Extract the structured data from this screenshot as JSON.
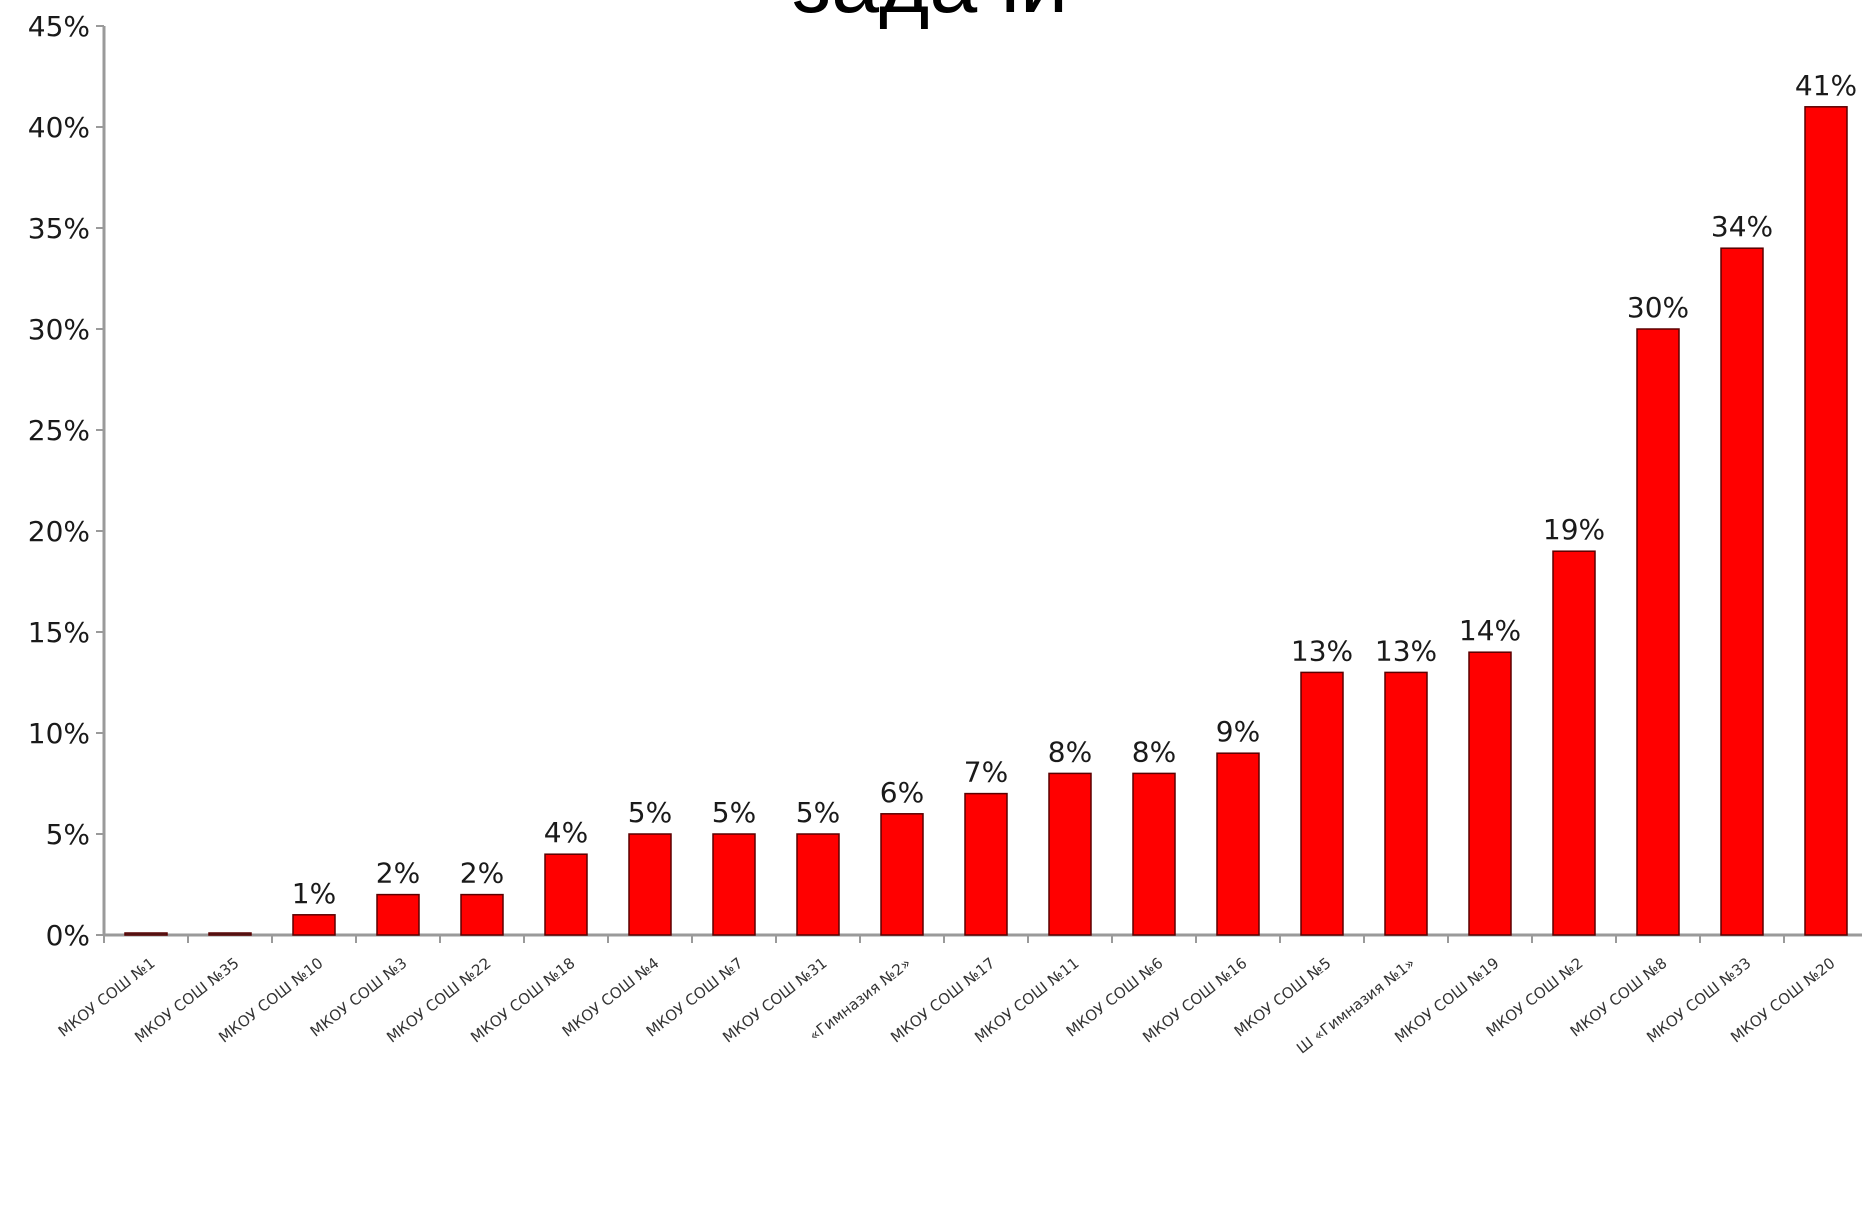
{
  "chart_data": {
    "type": "bar",
    "title": "задачи",
    "xlabel": "",
    "ylabel": "",
    "ylim": [
      0,
      45
    ],
    "y_ticks": [
      "0%",
      "5%",
      "10%",
      "15%",
      "20%",
      "25%",
      "30%",
      "35%",
      "40%",
      "45%"
    ],
    "grid": false,
    "legend": "none",
    "categories": [
      "МКОУ СОШ №1",
      "МКОУ СОШ №35",
      "МКОУ СОШ №10",
      "МКОУ СОШ №3",
      "МКОУ СОШ №22",
      "МКОУ СОШ №18",
      "МКОУ СОШ №4",
      "МКОУ СОШ №7",
      "МКОУ СОШ №31",
      " «Гимназия №2»",
      "МКОУ СОШ №17",
      "МКОУ СОШ №11",
      "МКОУ СОШ №6",
      "МКОУ СОШ №16",
      "МКОУ СОШ №5",
      "Ш «Гимназия №1»",
      "МКОУ СОШ №19",
      "МКОУ СОШ №2",
      "МКОУ СОШ №8",
      "МКОУ СОШ №33",
      "МКОУ СОШ №20"
    ],
    "values": [
      0,
      0,
      1,
      2,
      2,
      4,
      5,
      5,
      5,
      6,
      7,
      8,
      8,
      9,
      13,
      13,
      14,
      19,
      30,
      34,
      41
    ],
    "labels": [
      "",
      "",
      "1%",
      "2%",
      "2%",
      "4%",
      "5%",
      "5%",
      "5%",
      "6%",
      "7%",
      "8%",
      "8%",
      "9%",
      "13%",
      "13%",
      "14%",
      "19%",
      "30%",
      "34%",
      "41%"
    ],
    "colors": {
      "bar": "#ff0000",
      "bar_outline": "#5a0000",
      "axis": "#9a9a9a"
    }
  }
}
